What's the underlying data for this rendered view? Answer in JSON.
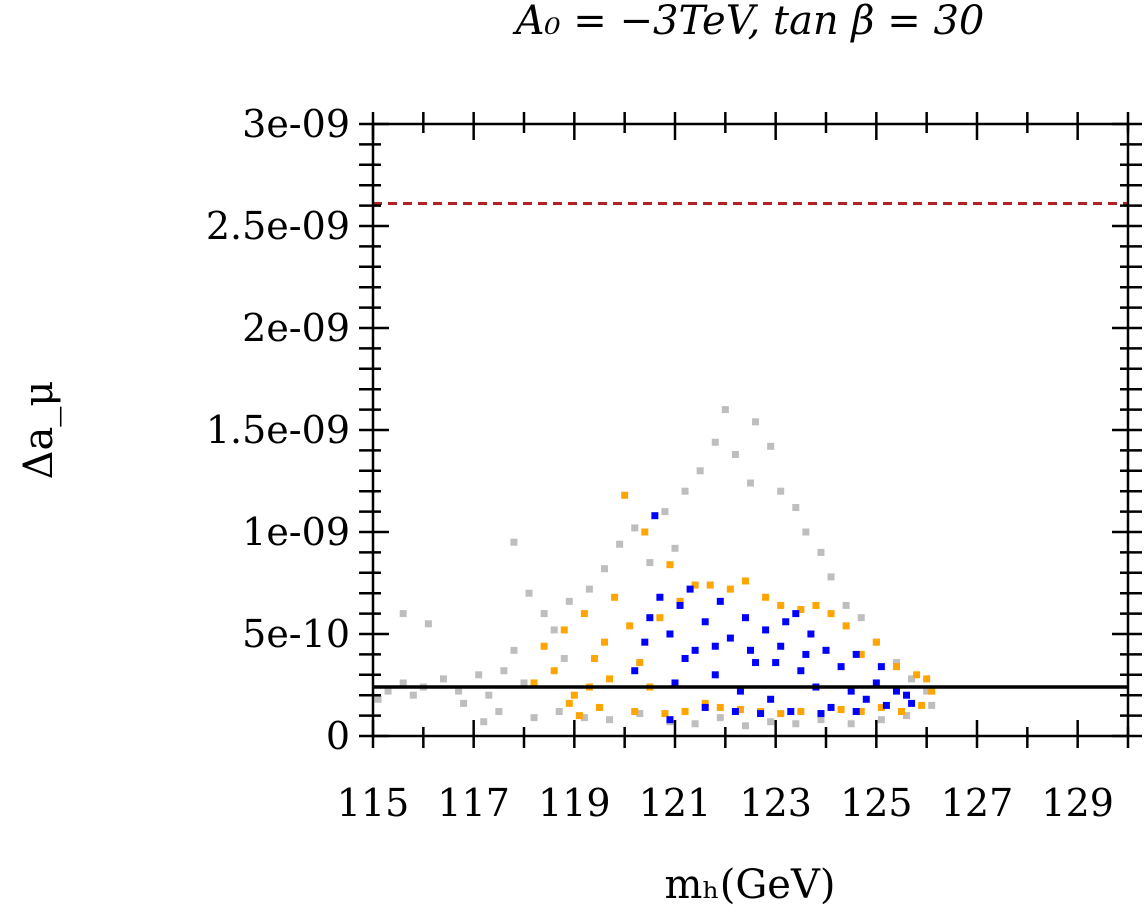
{
  "chart_data": {
    "type": "scatter",
    "title": "A₀ = −3TeV, tan β = 30",
    "xlabel": "mₕ(GeV)",
    "ylabel": "Δa_μ",
    "xlim": [
      115,
      130
    ],
    "ylim": [
      0,
      3e-09
    ],
    "x_ticks": [
      115,
      117,
      119,
      121,
      123,
      125,
      127,
      129
    ],
    "x_tick_labels": [
      "115",
      "117",
      "119",
      "121",
      "123",
      "125",
      "127",
      "129"
    ],
    "y_ticks": [
      0,
      5e-10,
      1e-09,
      1.5e-09,
      2e-09,
      2.5e-09,
      3e-09
    ],
    "y_tick_labels": [
      "0",
      "5e-10",
      "1e-09",
      "1.5e-09",
      "2e-09",
      "2.5e-09",
      "3e-09"
    ],
    "grid": false,
    "reference_lines": [
      {
        "y": 2.61e-09,
        "style": "dashed",
        "color": "#b22222"
      },
      {
        "y": 2.4e-10,
        "style": "solid",
        "color": "#000000"
      }
    ],
    "series": [
      {
        "color": "#bebebe",
        "points": [
          [
            115.1,
            1.8e-10
          ],
          [
            115.3,
            2.2e-10
          ],
          [
            115.6,
            2.6e-10
          ],
          [
            115.8,
            2e-10
          ],
          [
            115.6,
            6e-10
          ],
          [
            116.1,
            5.5e-10
          ],
          [
            116.0,
            2.4e-10
          ],
          [
            116.4,
            2.8e-10
          ],
          [
            116.7,
            2.2e-10
          ],
          [
            116.8,
            1.6e-10
          ],
          [
            117.1,
            3e-10
          ],
          [
            117.3,
            2e-10
          ],
          [
            117.5,
            1.2e-10
          ],
          [
            117.6,
            3.2e-10
          ],
          [
            117.8,
            4.2e-10
          ],
          [
            118.0,
            2.6e-10
          ],
          [
            117.2,
            7e-11
          ],
          [
            118.2,
            9e-11
          ],
          [
            117.8,
            9.5e-10
          ],
          [
            118.1,
            7e-10
          ],
          [
            118.4,
            6e-10
          ],
          [
            118.6,
            5.2e-10
          ],
          [
            118.9,
            6.6e-10
          ],
          [
            118.8,
            3.8e-10
          ],
          [
            119.3,
            7.2e-10
          ],
          [
            119.6,
            8.2e-10
          ],
          [
            119.9,
            9.4e-10
          ],
          [
            120.2,
            1.02e-09
          ],
          [
            120.5,
            8.5e-10
          ],
          [
            120.8,
            1.1e-09
          ],
          [
            121.0,
            9.2e-10
          ],
          [
            121.2,
            1.2e-09
          ],
          [
            121.5,
            1.3e-09
          ],
          [
            121.8,
            1.44e-09
          ],
          [
            122.0,
            1.6e-09
          ],
          [
            122.2,
            1.38e-09
          ],
          [
            122.5,
            1.24e-09
          ],
          [
            122.6,
            1.54e-09
          ],
          [
            122.9,
            1.42e-09
          ],
          [
            123.1,
            1.2e-09
          ],
          [
            123.4,
            1.12e-09
          ],
          [
            123.6,
            1e-09
          ],
          [
            123.9,
            9e-10
          ],
          [
            124.1,
            7.8e-10
          ],
          [
            124.4,
            6.4e-10
          ],
          [
            124.7,
            5.8e-10
          ],
          [
            125.0,
            4.6e-10
          ],
          [
            125.4,
            3.6e-10
          ],
          [
            125.7,
            2.8e-10
          ],
          [
            126.0,
            2.2e-10
          ],
          [
            126.1,
            1.5e-10
          ],
          [
            118.7,
            1.2e-10
          ],
          [
            119.2,
            9e-11
          ],
          [
            119.7,
            8e-11
          ],
          [
            120.3,
            1.1e-10
          ],
          [
            120.9,
            7e-11
          ],
          [
            121.4,
            6e-11
          ],
          [
            121.9,
            9e-11
          ],
          [
            122.4,
            5e-11
          ],
          [
            122.9,
            7e-11
          ],
          [
            123.4,
            6e-11
          ],
          [
            123.9,
            8e-11
          ],
          [
            124.5,
            6e-11
          ],
          [
            125.1,
            8e-11
          ],
          [
            125.6,
            1e-10
          ]
        ]
      },
      {
        "color": "#ffa500",
        "points": [
          [
            118.2,
            2.6e-10
          ],
          [
            118.4,
            4.4e-10
          ],
          [
            118.6,
            3.2e-10
          ],
          [
            118.8,
            5.2e-10
          ],
          [
            119.0,
            2e-10
          ],
          [
            119.2,
            6e-10
          ],
          [
            119.4,
            3.8e-10
          ],
          [
            119.6,
            4.6e-10
          ],
          [
            119.7,
            2.8e-10
          ],
          [
            119.8,
            6.8e-10
          ],
          [
            120.0,
            1.18e-09
          ],
          [
            120.1,
            5.4e-10
          ],
          [
            120.3,
            3.6e-10
          ],
          [
            120.4,
            1e-09
          ],
          [
            120.5,
            2.4e-10
          ],
          [
            120.7,
            5.8e-10
          ],
          [
            120.9,
            8.4e-10
          ],
          [
            121.1,
            6.6e-10
          ],
          [
            121.4,
            7.4e-10
          ],
          [
            121.6,
            1.6e-10
          ],
          [
            121.9,
            1.4e-10
          ],
          [
            122.3,
            1.3e-10
          ],
          [
            122.7,
            1.2e-10
          ],
          [
            123.1,
            1.1e-10
          ],
          [
            123.5,
            1.2e-10
          ],
          [
            123.9,
            1.1e-10
          ],
          [
            124.3,
            1.3e-10
          ],
          [
            124.7,
            1.2e-10
          ],
          [
            125.1,
            1.4e-10
          ],
          [
            125.5,
            1.2e-10
          ],
          [
            125.9,
            1.5e-10
          ],
          [
            126.1,
            2.2e-10
          ],
          [
            126.0,
            2.8e-10
          ],
          [
            125.8,
            3e-10
          ],
          [
            125.4,
            3.4e-10
          ],
          [
            125.0,
            4.6e-10
          ],
          [
            124.7,
            4e-10
          ],
          [
            124.4,
            5.4e-10
          ],
          [
            124.1,
            6e-10
          ],
          [
            123.8,
            6.4e-10
          ],
          [
            123.5,
            6.2e-10
          ],
          [
            123.1,
            6.4e-10
          ],
          [
            122.8,
            6.8e-10
          ],
          [
            122.4,
            7.6e-10
          ],
          [
            122.1,
            7.2e-10
          ],
          [
            121.7,
            7.4e-10
          ],
          [
            119.1,
            1e-10
          ],
          [
            119.5,
            1.4e-10
          ],
          [
            120.2,
            1.2e-10
          ],
          [
            120.8,
            1.1e-10
          ],
          [
            121.2,
            1.2e-10
          ],
          [
            118.9,
            1.6e-10
          ],
          [
            119.3,
            2.4e-10
          ]
        ]
      },
      {
        "color": "#0000ff",
        "points": [
          [
            120.2,
            3.2e-10
          ],
          [
            120.4,
            4.6e-10
          ],
          [
            120.5,
            5.8e-10
          ],
          [
            120.6,
            1.08e-09
          ],
          [
            120.7,
            6.8e-10
          ],
          [
            120.9,
            5e-10
          ],
          [
            121.0,
            2.6e-10
          ],
          [
            121.1,
            6.4e-10
          ],
          [
            121.3,
            7.2e-10
          ],
          [
            121.4,
            4.2e-10
          ],
          [
            121.6,
            5.6e-10
          ],
          [
            121.8,
            3e-10
          ],
          [
            121.9,
            6.6e-10
          ],
          [
            122.1,
            4.8e-10
          ],
          [
            122.3,
            2.2e-10
          ],
          [
            122.4,
            5.8e-10
          ],
          [
            122.6,
            3.6e-10
          ],
          [
            122.8,
            5.2e-10
          ],
          [
            122.9,
            1.8e-10
          ],
          [
            123.1,
            4.4e-10
          ],
          [
            123.2,
            5.6e-10
          ],
          [
            123.4,
            6e-10
          ],
          [
            123.5,
            3.2e-10
          ],
          [
            123.7,
            5e-10
          ],
          [
            123.8,
            2.4e-10
          ],
          [
            124.0,
            4.2e-10
          ],
          [
            124.1,
            1.4e-10
          ],
          [
            124.3,
            3.4e-10
          ],
          [
            124.5,
            2.2e-10
          ],
          [
            124.6,
            4e-10
          ],
          [
            124.8,
            1.8e-10
          ],
          [
            125.0,
            2.6e-10
          ],
          [
            125.1,
            3.4e-10
          ],
          [
            125.2,
            1.5e-10
          ],
          [
            125.4,
            2.2e-10
          ],
          [
            125.6,
            2e-10
          ],
          [
            125.7,
            1.6e-10
          ],
          [
            121.6,
            1.4e-10
          ],
          [
            122.2,
            1.2e-10
          ],
          [
            122.7,
            1.1e-10
          ],
          [
            123.3,
            1.2e-10
          ],
          [
            123.9,
            1.1e-10
          ],
          [
            124.6,
            1.2e-10
          ],
          [
            121.2,
            3.8e-10
          ],
          [
            121.8,
            4.4e-10
          ],
          [
            122.5,
            4.2e-10
          ],
          [
            123.0,
            3.6e-10
          ],
          [
            123.6,
            4e-10
          ],
          [
            120.9,
            8e-11
          ]
        ]
      }
    ]
  }
}
